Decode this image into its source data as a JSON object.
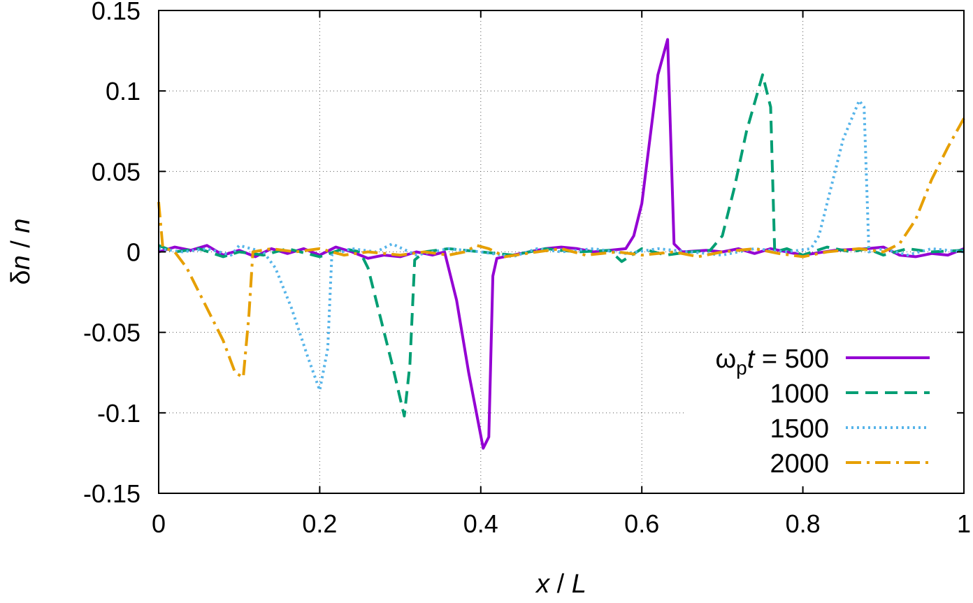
{
  "chart_data": {
    "type": "line",
    "xlabel": {
      "var": "x",
      "sep": " / ",
      "unit": "L"
    },
    "ylabel": {
      "prefix": "δ",
      "var": "n",
      "sep": " / ",
      "unit": "n"
    },
    "xlim": [
      0,
      1
    ],
    "ylim": [
      -0.15,
      0.15
    ],
    "x_ticks": [
      0,
      0.2,
      0.4,
      0.6,
      0.8,
      1
    ],
    "x_tick_labels": [
      "0",
      "0.2",
      "0.4",
      "0.6",
      "0.8",
      "1"
    ],
    "y_ticks": [
      -0.15,
      -0.1,
      -0.05,
      0,
      0.05,
      0.1,
      0.15
    ],
    "y_tick_labels": [
      "-0.15",
      "-0.1",
      "-0.05",
      "0",
      "0.05",
      "0.1",
      "0.15"
    ],
    "grid": true,
    "legend_position": "bottom-right",
    "legend_title": {
      "omega": "ω",
      "sub": "p",
      "var": "t",
      "eq": " = "
    },
    "series": [
      {
        "name": "500",
        "color": "#9400d3",
        "dash": "solid",
        "points": [
          [
            0,
            0.0
          ],
          [
            0.02,
            0.003
          ],
          [
            0.04,
            0.001
          ],
          [
            0.06,
            0.004
          ],
          [
            0.08,
            -0.002
          ],
          [
            0.1,
            0.001
          ],
          [
            0.12,
            -0.003
          ],
          [
            0.14,
            0.002
          ],
          [
            0.16,
            -0.001
          ],
          [
            0.18,
            0.002
          ],
          [
            0.2,
            -0.002
          ],
          [
            0.22,
            0.003
          ],
          [
            0.24,
            0.0
          ],
          [
            0.26,
            -0.004
          ],
          [
            0.28,
            -0.002
          ],
          [
            0.3,
            -0.003
          ],
          [
            0.32,
            0.0
          ],
          [
            0.34,
            -0.002
          ],
          [
            0.355,
            0.0
          ],
          [
            0.37,
            -0.03
          ],
          [
            0.385,
            -0.075
          ],
          [
            0.403,
            -0.122
          ],
          [
            0.41,
            -0.115
          ],
          [
            0.415,
            -0.015
          ],
          [
            0.42,
            -0.004
          ],
          [
            0.44,
            -0.002
          ],
          [
            0.46,
            0.0
          ],
          [
            0.48,
            0.002
          ],
          [
            0.5,
            0.003
          ],
          [
            0.52,
            0.002
          ],
          [
            0.54,
            0.0
          ],
          [
            0.56,
            0.001
          ],
          [
            0.58,
            0.002
          ],
          [
            0.59,
            0.01
          ],
          [
            0.6,
            0.03
          ],
          [
            0.61,
            0.07
          ],
          [
            0.62,
            0.11
          ],
          [
            0.632,
            0.132
          ],
          [
            0.64,
            0.005
          ],
          [
            0.65,
            0.0
          ],
          [
            0.68,
            0.001
          ],
          [
            0.7,
            0.0
          ],
          [
            0.72,
            0.002
          ],
          [
            0.74,
            -0.001
          ],
          [
            0.76,
            0.002
          ],
          [
            0.8,
            -0.002
          ],
          [
            0.84,
            0.001
          ],
          [
            0.88,
            0.002
          ],
          [
            0.9,
            0.003
          ],
          [
            0.92,
            -0.002
          ],
          [
            0.94,
            -0.003
          ],
          [
            0.96,
            -0.001
          ],
          [
            0.98,
            -0.002
          ],
          [
            1,
            0.002
          ]
        ]
      },
      {
        "name": "1000",
        "color": "#009e73",
        "dash": "18,10",
        "points": [
          [
            0,
            0.004
          ],
          [
            0.02,
            0.0
          ],
          [
            0.05,
            0.002
          ],
          [
            0.08,
            -0.003
          ],
          [
            0.1,
            0.0
          ],
          [
            0.13,
            -0.002
          ],
          [
            0.16,
            0.002
          ],
          [
            0.2,
            -0.003
          ],
          [
            0.23,
            0.002
          ],
          [
            0.25,
            0.0
          ],
          [
            0.26,
            -0.01
          ],
          [
            0.275,
            -0.04
          ],
          [
            0.29,
            -0.07
          ],
          [
            0.305,
            -0.102
          ],
          [
            0.312,
            -0.07
          ],
          [
            0.318,
            -0.005
          ],
          [
            0.33,
            0.0
          ],
          [
            0.36,
            0.002
          ],
          [
            0.4,
            0.0
          ],
          [
            0.44,
            -0.002
          ],
          [
            0.48,
            0.002
          ],
          [
            0.52,
            0.0
          ],
          [
            0.56,
            0.001
          ],
          [
            0.575,
            -0.006
          ],
          [
            0.6,
            0.002
          ],
          [
            0.63,
            -0.002
          ],
          [
            0.66,
            0.0
          ],
          [
            0.685,
            0.001
          ],
          [
            0.7,
            0.01
          ],
          [
            0.715,
            0.04
          ],
          [
            0.73,
            0.075
          ],
          [
            0.75,
            0.11
          ],
          [
            0.76,
            0.09
          ],
          [
            0.765,
            0.0
          ],
          [
            0.78,
            0.002
          ],
          [
            0.8,
            -0.002
          ],
          [
            0.83,
            0.003
          ],
          [
            0.86,
            0.0
          ],
          [
            0.88,
            0.002
          ],
          [
            0.9,
            -0.002
          ],
          [
            0.93,
            0.002
          ],
          [
            0.96,
            0.0
          ],
          [
            1,
            0.001
          ]
        ]
      },
      {
        "name": "1500",
        "color": "#56b4e9",
        "dash": "3,5",
        "points": [
          [
            0,
            0.002
          ],
          [
            0.03,
            0.0
          ],
          [
            0.06,
            0.002
          ],
          [
            0.09,
            -0.002
          ],
          [
            0.1,
            0.004
          ],
          [
            0.13,
            0.0
          ],
          [
            0.145,
            -0.01
          ],
          [
            0.165,
            -0.035
          ],
          [
            0.185,
            -0.065
          ],
          [
            0.2,
            -0.086
          ],
          [
            0.21,
            -0.06
          ],
          [
            0.215,
            -0.002
          ],
          [
            0.24,
            0.002
          ],
          [
            0.27,
            0.0
          ],
          [
            0.29,
            0.005
          ],
          [
            0.32,
            -0.002
          ],
          [
            0.36,
            0.002
          ],
          [
            0.4,
            0.0
          ],
          [
            0.44,
            -0.003
          ],
          [
            0.47,
            0.002
          ],
          [
            0.5,
            0.0
          ],
          [
            0.54,
            0.002
          ],
          [
            0.58,
            -0.001
          ],
          [
            0.62,
            0.002
          ],
          [
            0.66,
            0.0
          ],
          [
            0.7,
            -0.002
          ],
          [
            0.74,
            0.002
          ],
          [
            0.78,
            0.0
          ],
          [
            0.81,
            0.002
          ],
          [
            0.82,
            0.01
          ],
          [
            0.835,
            0.04
          ],
          [
            0.85,
            0.07
          ],
          [
            0.87,
            0.094
          ],
          [
            0.876,
            0.09
          ],
          [
            0.882,
            0.0
          ],
          [
            0.9,
            0.002
          ],
          [
            0.93,
            -0.002
          ],
          [
            0.96,
            0.002
          ],
          [
            1,
            0.0
          ]
        ]
      },
      {
        "name": "2000",
        "color": "#e69f00",
        "dash": "22,8,4,8",
        "points": [
          [
            0,
            0.031
          ],
          [
            0.005,
            0.003
          ],
          [
            0.02,
            0.0
          ],
          [
            0.035,
            -0.01
          ],
          [
            0.05,
            -0.025
          ],
          [
            0.065,
            -0.04
          ],
          [
            0.08,
            -0.055
          ],
          [
            0.095,
            -0.075
          ],
          [
            0.105,
            -0.078
          ],
          [
            0.112,
            -0.04
          ],
          [
            0.117,
            0.0
          ],
          [
            0.14,
            0.002
          ],
          [
            0.17,
            0.0
          ],
          [
            0.2,
            0.002
          ],
          [
            0.23,
            -0.002
          ],
          [
            0.26,
            0.0
          ],
          [
            0.3,
            -0.002
          ],
          [
            0.33,
            0.0
          ],
          [
            0.36,
            -0.002
          ],
          [
            0.38,
            0.0
          ],
          [
            0.395,
            0.004
          ],
          [
            0.41,
            0.002
          ],
          [
            0.43,
            -0.003
          ],
          [
            0.47,
            0.0
          ],
          [
            0.5,
            0.002
          ],
          [
            0.53,
            -0.002
          ],
          [
            0.57,
            0.0
          ],
          [
            0.6,
            -0.002
          ],
          [
            0.64,
            0.0
          ],
          [
            0.67,
            -0.003
          ],
          [
            0.7,
            0.0
          ],
          [
            0.74,
            0.002
          ],
          [
            0.77,
            -0.001
          ],
          [
            0.8,
            -0.003
          ],
          [
            0.83,
            0.0
          ],
          [
            0.87,
            0.002
          ],
          [
            0.9,
            0.0
          ],
          [
            0.92,
            0.005
          ],
          [
            0.94,
            0.02
          ],
          [
            0.96,
            0.045
          ],
          [
            0.98,
            0.065
          ],
          [
            1,
            0.083
          ]
        ]
      }
    ]
  }
}
